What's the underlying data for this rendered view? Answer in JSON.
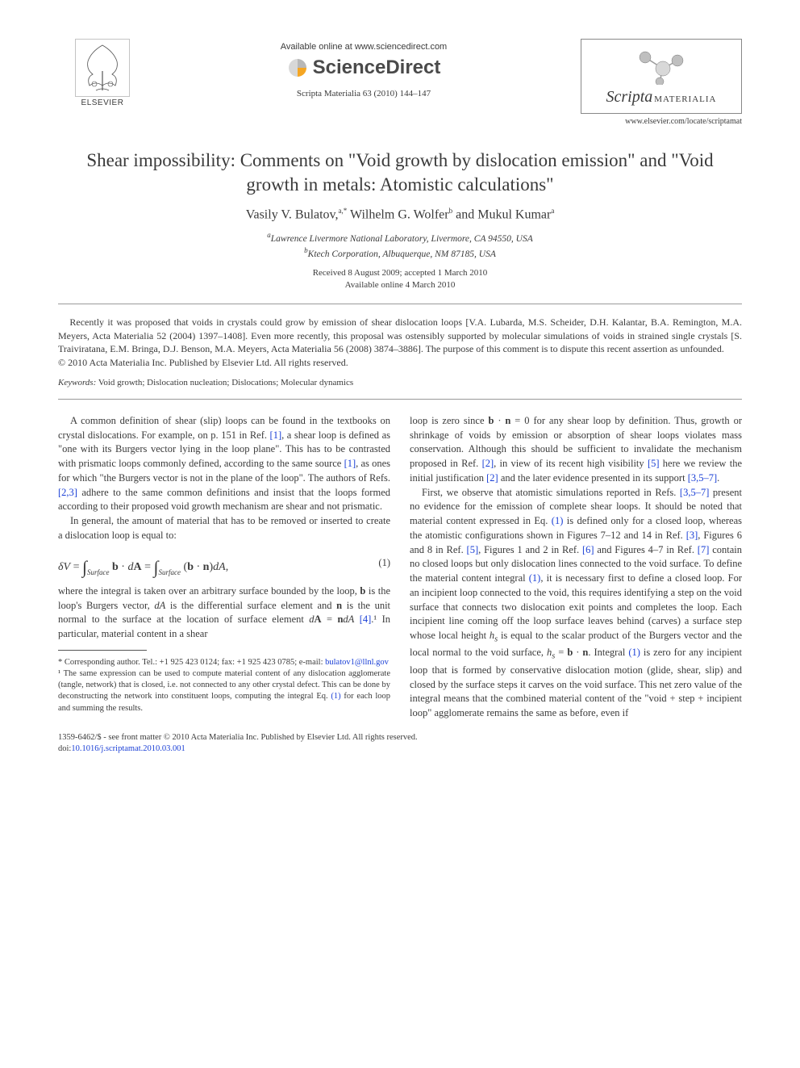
{
  "header": {
    "publisher_label": "ELSEVIER",
    "available_online": "Available online at www.sciencedirect.com",
    "sciencedirect": "ScienceDirect",
    "citation": "Scripta Materialia 63 (2010) 144–147",
    "journal_name_italic": "Scripta",
    "journal_name_caps": "MATERIALIA",
    "locate_url": "www.elsevier.com/locate/scriptamat"
  },
  "title": "Shear impossibility: Comments on \"Void growth by dislocation emission\" and \"Void growth in metals: Atomistic calculations\"",
  "authors_html": "Vasily V. Bulatov,<sup>a,*</sup> Wilhelm G. Wolfer<sup>b</sup> and Mukul Kumar<sup>a</sup>",
  "affiliations": {
    "a": "Lawrence Livermore National Laboratory, Livermore, CA 94550, USA",
    "b": "Ktech Corporation, Albuquerque, NM 87185, USA"
  },
  "dates": {
    "received": "Received 8 August 2009; accepted 1 March 2010",
    "online": "Available online 4 March 2010"
  },
  "abstract": "Recently it was proposed that voids in crystals could grow by emission of shear dislocation loops [V.A. Lubarda, M.S. Scheider, D.H. Kalantar, B.A. Remington, M.A. Meyers, Acta Materialia 52 (2004) 1397–1408]. Even more recently, this proposal was ostensibly supported by molecular simulations of voids in strained single crystals [S. Traiviratana, E.M. Bringa, D.J. Benson, M.A. Meyers, Acta Materialia 56 (2008) 3874–3886]. The purpose of this comment is to dispute this recent assertion as unfounded.",
  "copyright": "© 2010 Acta Materialia Inc. Published by Elsevier Ltd. All rights reserved.",
  "keywords_label": "Keywords:",
  "keywords": "Void growth; Dislocation nucleation; Dislocations; Molecular dynamics",
  "body": {
    "p1": "A common definition of shear (slip) loops can be found in the textbooks on crystal dislocations. For example, on p. 151 in Ref. [1], a shear loop is defined as \"one with its Burgers vector lying in the loop plane\". This has to be contrasted with prismatic loops commonly defined, according to the same source [1], as ones for which \"the Burgers vector is not in the plane of the loop\". The authors of Refs. [2,3] adhere to the same common definitions and insist that the loops formed according to their proposed void growth mechanism are shear and not prismatic.",
    "p2": "In general, the amount of material that has to be removed or inserted to create a dislocation loop is equal to:",
    "eq1_label": "(1)",
    "p3_a": "where the integral is taken over an arbitrary surface bounded by the loop, ",
    "p3_b": " is the loop's Burgers vector, ",
    "p3_c": " is the differential surface element and ",
    "p3_d": " is the unit normal to the surface at the location of surface element ",
    "p3_e": " [4].¹ In particular, material content in a shear",
    "p4": "loop is zero since b · n = 0 for any shear loop by definition. Thus, growth or shrinkage of voids by emission or absorption of shear loops violates mass conservation. Although this should be sufficient to invalidate the mechanism proposed in Ref. [2], in view of its recent high visibility [5] here we review the initial justification [2] and the later evidence presented in its support [3,5–7].",
    "p5": "First, we observe that atomistic simulations reported in Refs. [3,5–7] present no evidence for the emission of complete shear loops. It should be noted that material content expressed in Eq. (1) is defined only for a closed loop, whereas the atomistic configurations shown in Figures 7–12 and 14 in Ref. [3], Figures 6 and 8 in Ref. [5], Figures 1 and 2 in Ref. [6] and Figures 4–7 in Ref. [7] contain no closed loops but only dislocation lines connected to the void surface. To define the material content integral (1), it is necessary first to define a closed loop. For an incipient loop connected to the void, this requires identifying a step on the void surface that connects two dislocation exit points and completes the loop. Each incipient line coming off the loop surface leaves behind (carves) a surface step whose local height hs is equal to the scalar product of the Burgers vector and the local normal to the void surface, hs = b · n. Integral (1) is zero for any incipient loop that is formed by conservative dislocation motion (glide, shear, slip) and closed by the surface steps it carves on the void surface. This net zero value of the integral means that the combined material content of the \"void + step + incipient loop\" agglomerate remains the same as before, even if"
  },
  "footnotes": {
    "corr": "* Corresponding author. Tel.: +1 925 423 0124; fax: +1 925 423 0785; e-mail: ",
    "email": "bulatov1@llnl.gov",
    "fn1": "¹ The same expression can be used to compute material content of any dislocation agglomerate (tangle, network) that is closed, i.e. not connected to any other crystal defect. This can be done by deconstructing the network into constituent loops, computing the integral Eq. (1) for each loop and summing the results."
  },
  "footer": {
    "line1": "1359-6462/$ - see front matter © 2010 Acta Materialia Inc. Published by Elsevier Ltd. All rights reserved.",
    "doi_label": "doi:",
    "doi": "10.1016/j.scriptamat.2010.03.001"
  },
  "ref_color": "#1a3fd6",
  "logo_colors": {
    "sd_orange": "#f5a623",
    "tree_gray": "#6b6b6b",
    "journal_node": "#888888",
    "journal_border": "#888888"
  }
}
